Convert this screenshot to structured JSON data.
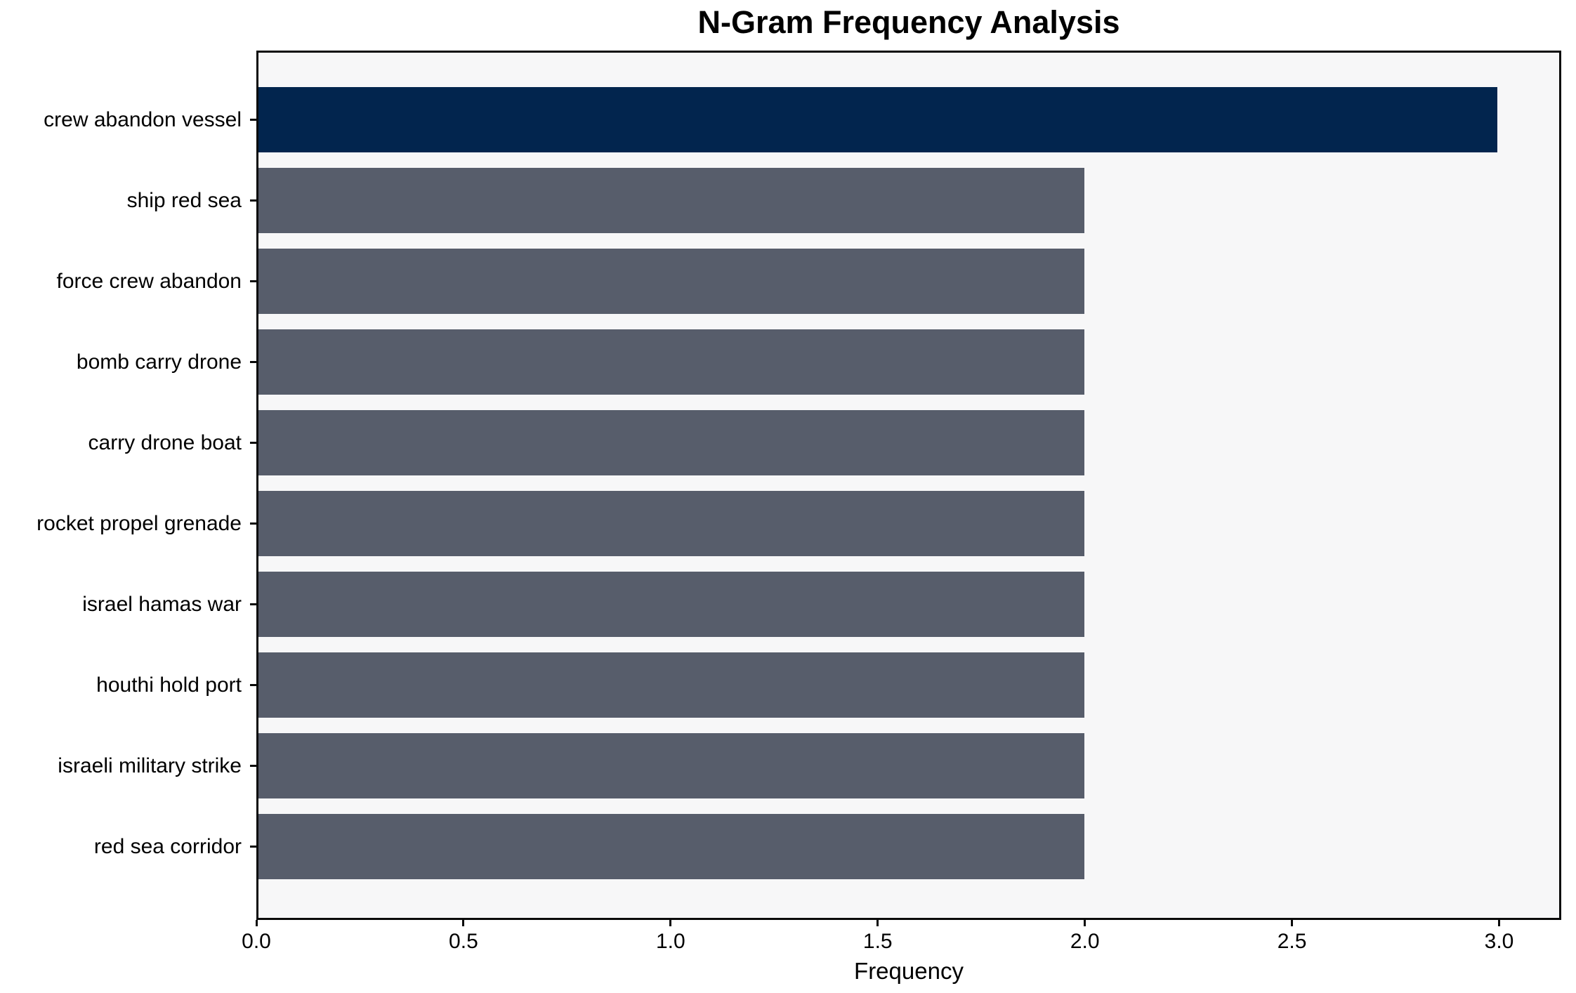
{
  "chart_data": {
    "type": "bar",
    "orientation": "horizontal",
    "title": "N-Gram Frequency Analysis",
    "xlabel": "Frequency",
    "ylabel": "",
    "categories": [
      "crew abandon vessel",
      "ship red sea",
      "force crew abandon",
      "bomb carry drone",
      "carry drone boat",
      "rocket propel grenade",
      "israel hamas war",
      "houthi hold port",
      "israeli military strike",
      "red sea corridor"
    ],
    "values": [
      3,
      2,
      2,
      2,
      2,
      2,
      2,
      2,
      2,
      2
    ],
    "bar_colors": [
      "#02254E",
      "#575D6B",
      "#575D6B",
      "#575D6B",
      "#575D6B",
      "#575D6B",
      "#575D6B",
      "#575D6B",
      "#575D6B",
      "#575D6B"
    ],
    "xlim": [
      0,
      3.15
    ],
    "xticks": [
      0.0,
      0.5,
      1.0,
      1.5,
      2.0,
      2.5,
      3.0
    ],
    "grid": false,
    "legend": null,
    "plot_background": "#F7F7F8",
    "figure_background": "#FFFFFF",
    "highlight_color": "#02254E",
    "default_bar_color": "#575D6B"
  }
}
